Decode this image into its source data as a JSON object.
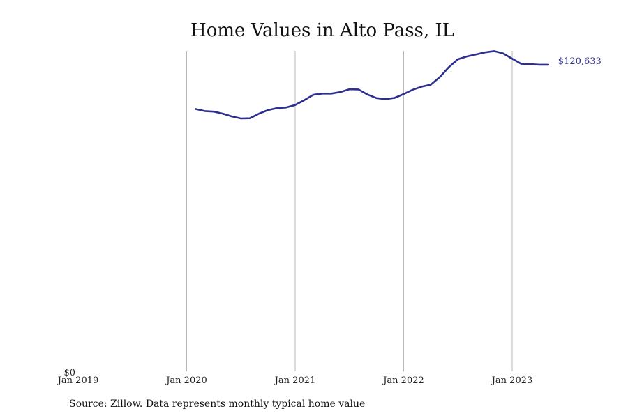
{
  "chart_data": {
    "type": "line",
    "title": "Home Values in Alto Pass, IL",
    "xlabel": "",
    "ylabel": "",
    "x_ticks": [
      "Jan 2019",
      "Jan 2020",
      "Jan 2021",
      "Jan 2022",
      "Jan 2023"
    ],
    "y_ticks": [
      "$0"
    ],
    "ylim": [
      0,
      125000
    ],
    "grid": "vertical",
    "line_color": "#2e2e8f",
    "end_label": "$120,633",
    "series": [
      {
        "x": [
          "2020-02",
          "2020-03",
          "2020-04",
          "2020-05",
          "2020-06",
          "2020-07",
          "2020-08",
          "2020-09",
          "2020-10",
          "2020-11",
          "2020-12",
          "2021-01",
          "2021-02",
          "2021-03",
          "2021-04",
          "2021-05",
          "2021-06",
          "2021-07",
          "2021-08",
          "2021-09",
          "2021-10",
          "2021-11",
          "2021-12",
          "2022-01",
          "2022-02",
          "2022-03",
          "2022-04",
          "2022-05",
          "2022-06",
          "2022-07",
          "2022-08",
          "2022-09",
          "2022-10",
          "2022-11",
          "2022-12",
          "2023-01",
          "2023-02",
          "2023-03",
          "2023-04",
          "2023-05"
        ],
        "values": [
          103200,
          102400,
          102200,
          101400,
          100300,
          99500,
          99600,
          101400,
          102800,
          103600,
          103800,
          104800,
          106700,
          108800,
          109300,
          109300,
          109900,
          111000,
          110900,
          108900,
          107500,
          107100,
          107600,
          109100,
          110800,
          112000,
          112800,
          115800,
          119700,
          122800,
          123900,
          124700,
          125500,
          126000,
          125100,
          123000,
          121000,
          120900,
          120633,
          120633
        ]
      }
    ]
  },
  "source": "Source: Zillow. Data represents monthly typical home value"
}
